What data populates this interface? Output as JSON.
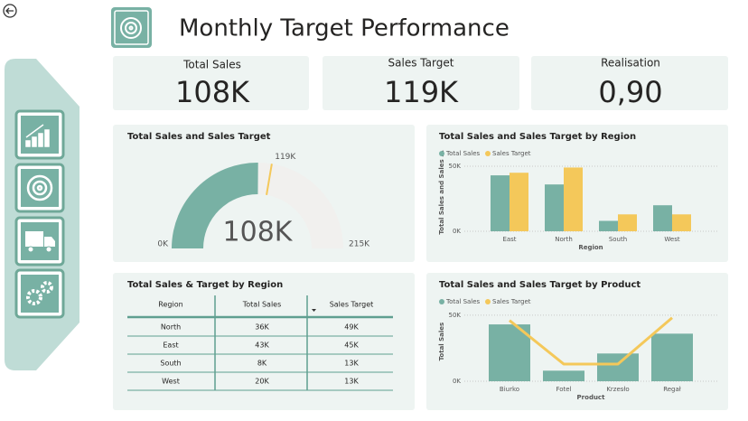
{
  "header": {
    "title": "Monthly Target Performance"
  },
  "kpis": [
    {
      "label": "Total Sales",
      "value": "108K"
    },
    {
      "label": "Sales Target",
      "value": "119K"
    },
    {
      "label": "Realisation",
      "value": "0,90"
    }
  ],
  "chart_data": [
    {
      "type": "gauge",
      "title": "Total Sales and Sales Target",
      "value": 108000,
      "value_label": "108K",
      "target": 119000,
      "target_label": "119K",
      "range": [
        {
          "value": 0,
          "label": "0K"
        },
        {
          "value": 215000,
          "label": "215K"
        }
      ],
      "color": "#78b1a4",
      "target_color": "#f4c85a",
      "track_color": "#f1f0ee"
    },
    {
      "type": "bar",
      "title": "Total Sales and Sales Target by Region",
      "categories": [
        "East",
        "North",
        "South",
        "West"
      ],
      "series": [
        {
          "name": "Total Sales",
          "color": "#78b1a4",
          "values": [
            43000,
            36000,
            8000,
            20000
          ]
        },
        {
          "name": "Sales Target",
          "color": "#f4c85a",
          "values": [
            45000,
            49000,
            13000,
            13000
          ]
        }
      ],
      "x_label": "Region",
      "y_label": "Total Sales and Sales ...",
      "ylim": [
        0,
        60000
      ],
      "yticks": [
        {
          "value": 0,
          "label": "0K"
        },
        {
          "value": 50000,
          "label": "50K"
        }
      ],
      "grid": true
    },
    {
      "type": "combo",
      "title": "Total Sales and Sales Target by Product",
      "categories": [
        "Biurko",
        "Fotel",
        "Krzesło",
        "Regał"
      ],
      "series": [
        {
          "name": "Total Sales",
          "color": "#78b1a4",
          "type": "bar",
          "values": [
            43000,
            8000,
            21000,
            36000
          ]
        },
        {
          "name": "Sales Target",
          "color": "#f4c85a",
          "type": "line",
          "values": [
            46000,
            13000,
            13000,
            48000
          ]
        }
      ],
      "x_label": "Product",
      "y_label": "Total Sales",
      "ylim": [
        0,
        60000
      ],
      "yticks": [
        {
          "value": 0,
          "label": "0K"
        },
        {
          "value": 50000,
          "label": "50K"
        }
      ],
      "grid": true
    }
  ],
  "table": {
    "title": "Total Sales & Target by Region",
    "columns": [
      "Region",
      "Total Sales",
      "Sales Target"
    ],
    "rows": [
      [
        "North",
        "36K",
        "49K"
      ],
      [
        "East",
        "43K",
        "45K"
      ],
      [
        "South",
        "8K",
        "13K"
      ],
      [
        "West",
        "20K",
        "13K"
      ]
    ]
  }
}
